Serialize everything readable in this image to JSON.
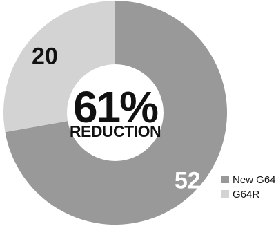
{
  "chart_data": {
    "type": "pie",
    "series": [
      {
        "name": "New G64",
        "value": 52,
        "color": "#999999",
        "label_color": "#ffffff"
      },
      {
        "name": "G64R",
        "value": 20,
        "color": "#d3d3d3",
        "label_color": "#111111"
      }
    ],
    "donut": true,
    "center_text": {
      "value": "61%",
      "caption": "REDUCTION"
    },
    "legend_position": "bottom-right",
    "text_color": "#111111"
  }
}
